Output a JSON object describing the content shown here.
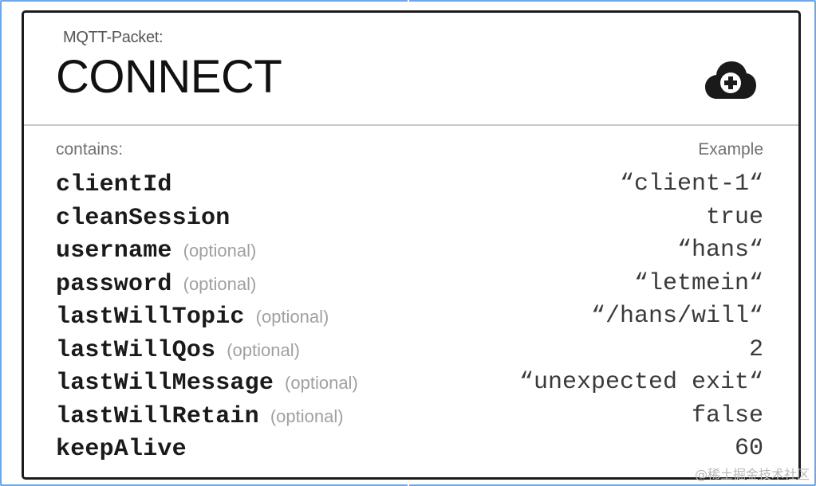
{
  "header": {
    "packet_label": "MQTT-Packet:",
    "packet_name": "CONNECT",
    "icon": "cloud-add-icon"
  },
  "columns": {
    "left": "contains:",
    "right": "Example"
  },
  "fields": [
    {
      "name": "clientId",
      "optional": "",
      "example": "“client-1“"
    },
    {
      "name": "cleanSession",
      "optional": "",
      "example": "true"
    },
    {
      "name": "username",
      "optional": "(optional)",
      "example": "“hans“"
    },
    {
      "name": "password",
      "optional": "(optional)",
      "example": "“letmein“"
    },
    {
      "name": "lastWillTopic",
      "optional": "(optional)",
      "example": "“/hans/will“"
    },
    {
      "name": "lastWillQos",
      "optional": "(optional)",
      "example": "2"
    },
    {
      "name": "lastWillMessage",
      "optional": "(optional)",
      "example": "“unexpected exit“"
    },
    {
      "name": "lastWillRetain",
      "optional": "(optional)",
      "example": "false"
    },
    {
      "name": "keepAlive",
      "optional": "",
      "example": "60"
    }
  ],
  "watermark": "@稀土掘金技术社区",
  "colors": {
    "frame": "#6ea6e8",
    "card_border": "#1c1c1c",
    "optional_text": "#a0a0a0"
  }
}
